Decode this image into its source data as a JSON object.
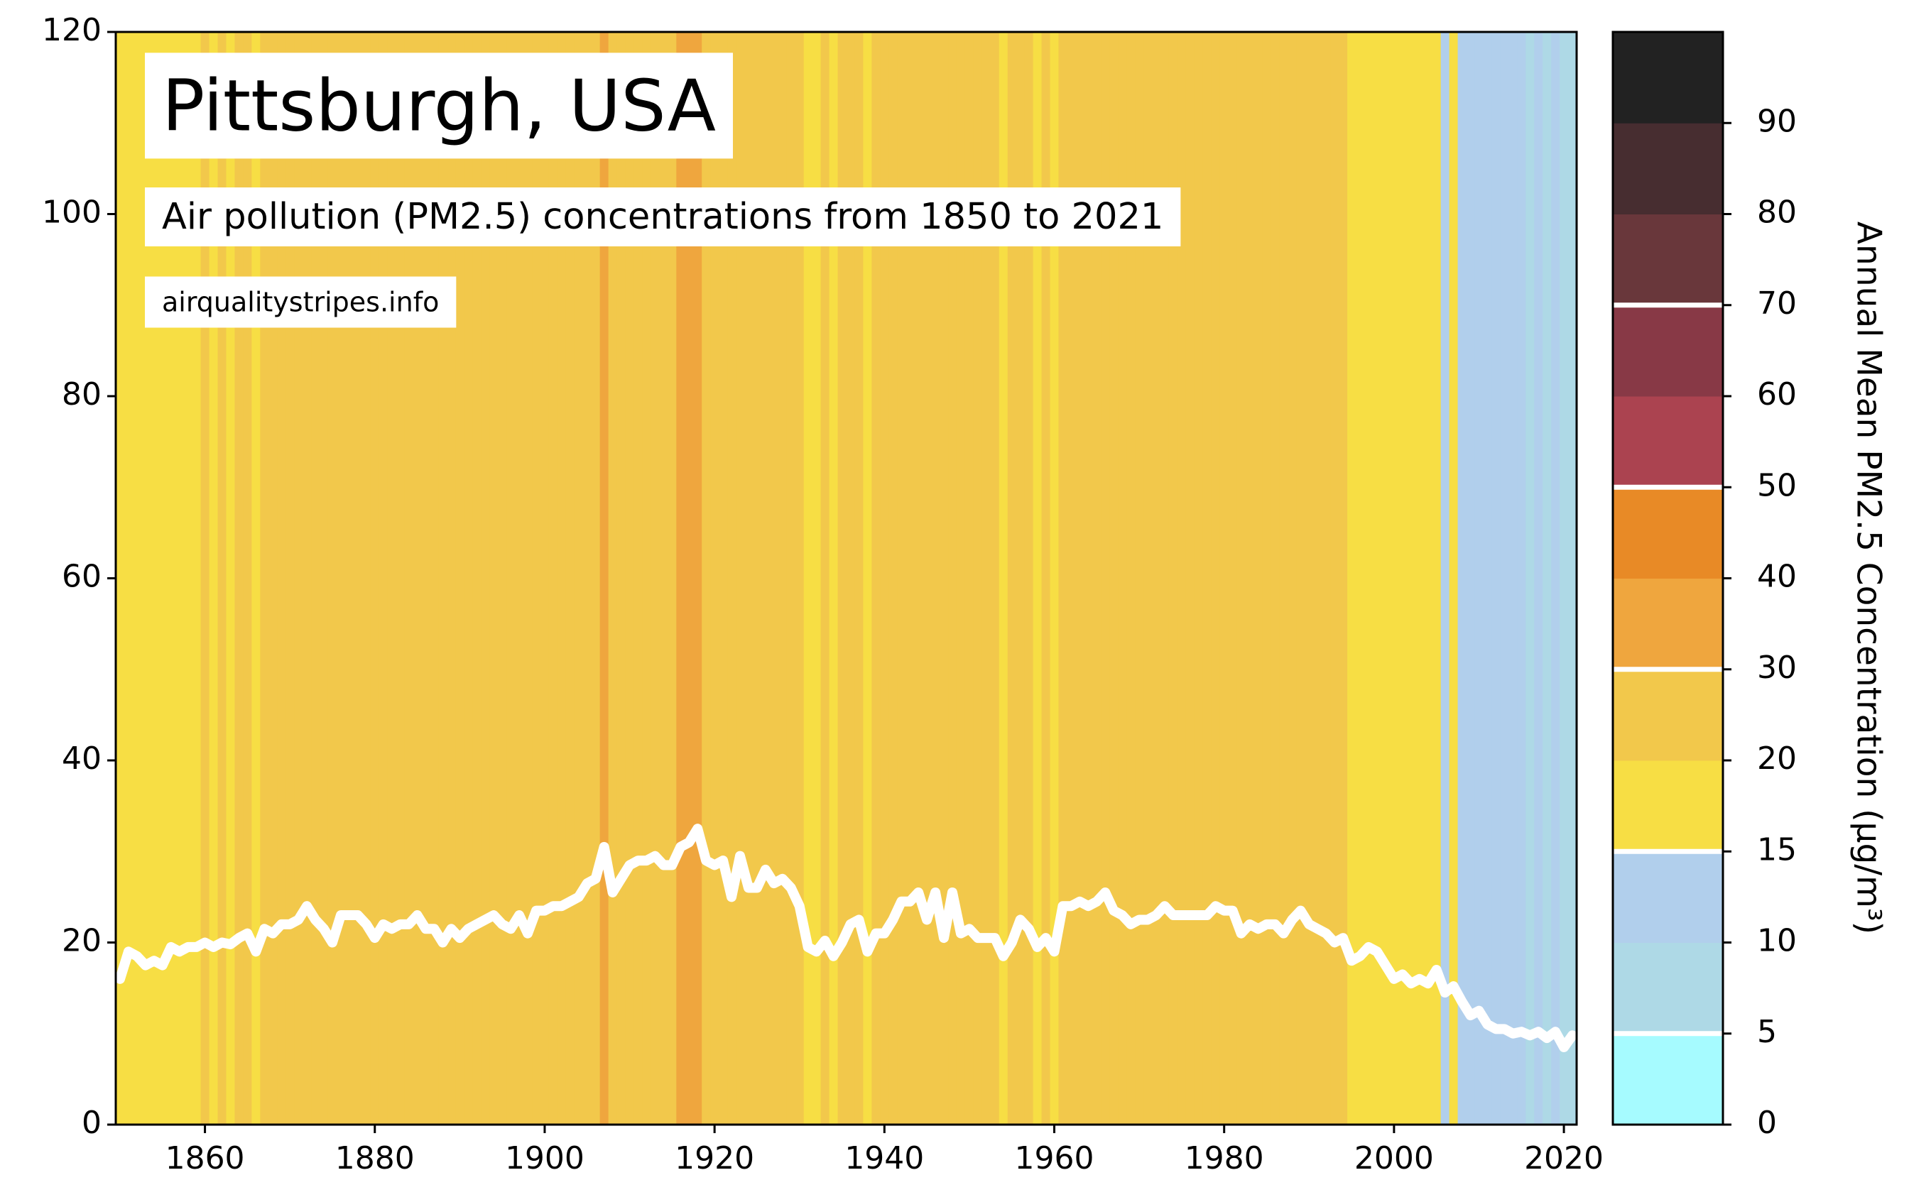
{
  "chart_data": {
    "type": "line",
    "title": "Pittsburgh, USA",
    "subtitle": "Air pollution (PM2.5) concentrations from 1850 to 2021",
    "source": "airqualitystripes.info",
    "x": [
      1850,
      1851,
      1852,
      1853,
      1854,
      1855,
      1856,
      1857,
      1858,
      1859,
      1860,
      1861,
      1862,
      1863,
      1864,
      1865,
      1866,
      1867,
      1868,
      1869,
      1870,
      1871,
      1872,
      1873,
      1874,
      1875,
      1876,
      1877,
      1878,
      1879,
      1880,
      1881,
      1882,
      1883,
      1884,
      1885,
      1886,
      1887,
      1888,
      1889,
      1890,
      1891,
      1892,
      1893,
      1894,
      1895,
      1896,
      1897,
      1898,
      1899,
      1900,
      1901,
      1902,
      1903,
      1904,
      1905,
      1906,
      1907,
      1908,
      1909,
      1910,
      1911,
      1912,
      1913,
      1914,
      1915,
      1916,
      1917,
      1918,
      1919,
      1920,
      1921,
      1922,
      1923,
      1924,
      1925,
      1926,
      1927,
      1928,
      1929,
      1930,
      1931,
      1932,
      1933,
      1934,
      1935,
      1936,
      1937,
      1938,
      1939,
      1940,
      1941,
      1942,
      1943,
      1944,
      1945,
      1946,
      1947,
      1948,
      1949,
      1950,
      1951,
      1952,
      1953,
      1954,
      1955,
      1956,
      1957,
      1958,
      1959,
      1960,
      1961,
      1962,
      1963,
      1964,
      1965,
      1966,
      1967,
      1968,
      1969,
      1970,
      1971,
      1972,
      1973,
      1974,
      1975,
      1976,
      1977,
      1978,
      1979,
      1980,
      1981,
      1982,
      1983,
      1984,
      1985,
      1986,
      1987,
      1988,
      1989,
      1990,
      1991,
      1992,
      1993,
      1994,
      1995,
      1996,
      1997,
      1998,
      1999,
      2000,
      2001,
      2002,
      2003,
      2004,
      2005,
      2006,
      2007,
      2008,
      2009,
      2010,
      2011,
      2012,
      2013,
      2014,
      2015,
      2016,
      2017,
      2018,
      2019,
      2020,
      2021
    ],
    "values": [
      16,
      19,
      18.5,
      17.5,
      18,
      17.5,
      19.5,
      19,
      19.5,
      19.5,
      20,
      19.5,
      20,
      19.8,
      20.5,
      21,
      19,
      21.5,
      21,
      22,
      22,
      22.5,
      24,
      22.5,
      21.5,
      20,
      23,
      23,
      23,
      22,
      20.5,
      22,
      21.5,
      22,
      22,
      23,
      21.5,
      21.5,
      20,
      21.5,
      20.5,
      21.5,
      22,
      22.5,
      23,
      22,
      21.5,
      23,
      21,
      23.5,
      23.5,
      24,
      24,
      24.5,
      25,
      26.5,
      27,
      30.5,
      25.5,
      27,
      28.5,
      29,
      29,
      29.5,
      28.5,
      28.5,
      30.5,
      31,
      32.5,
      29,
      28.5,
      29,
      25,
      29.5,
      26,
      26,
      28,
      26.5,
      27,
      26,
      24,
      19.5,
      19,
      20.2,
      18.5,
      20,
      22,
      22.5,
      19,
      21,
      21,
      22.5,
      24.5,
      24.5,
      25.5,
      22.5,
      25.5,
      20.5,
      25.5,
      21,
      21.5,
      20.5,
      20.5,
      20.5,
      18.5,
      20,
      22.5,
      21.5,
      19.5,
      20.5,
      19,
      24,
      24,
      24.5,
      24,
      24.5,
      25.5,
      23.5,
      23,
      22,
      22.5,
      22.5,
      23,
      24,
      23,
      23,
      23,
      23,
      23,
      24,
      23.5,
      23.5,
      21,
      22,
      21.5,
      22,
      22,
      21,
      22.5,
      23.5,
      22,
      21.5,
      21,
      20,
      20.5,
      18,
      18.5,
      19.5,
      19,
      17.5,
      16,
      16.5,
      15.5,
      16,
      15.5,
      17,
      14.5,
      15.2,
      13.5,
      12,
      12.5,
      11,
      10.5,
      10.5,
      10,
      10.2,
      9.8,
      10.2,
      9.5,
      10.2,
      8.5,
      9.8
    ],
    "color": "#ffffff",
    "xlim": [
      1849.5,
      2021.5
    ],
    "xticks": [
      1860,
      1880,
      1900,
      1920,
      1940,
      1960,
      1980,
      2000,
      2020
    ],
    "ylim": [
      0,
      120
    ],
    "yticks": [
      0,
      20,
      40,
      60,
      80,
      100,
      120
    ],
    "colorbar": {
      "label": "Annual Mean PM2.5 Concentration (µg/m³)",
      "bounds": [
        0,
        5,
        10,
        15,
        20,
        30,
        40,
        50,
        60,
        70,
        80,
        90,
        100
      ],
      "colors": [
        "#a6fbff",
        "#aed9e6",
        "#b1cfec",
        "#f7de44",
        "#f2c84b",
        "#efa63e",
        "#e88a26",
        "#ab4350",
        "#883946",
        "#69373b",
        "#472d30",
        "#222222"
      ],
      "ticks": [
        0,
        5,
        10,
        15,
        20,
        30,
        40,
        50,
        60,
        70,
        80,
        90
      ],
      "marks": [
        5,
        15,
        30,
        50,
        70
      ],
      "marks_color": "#ffffff"
    }
  }
}
